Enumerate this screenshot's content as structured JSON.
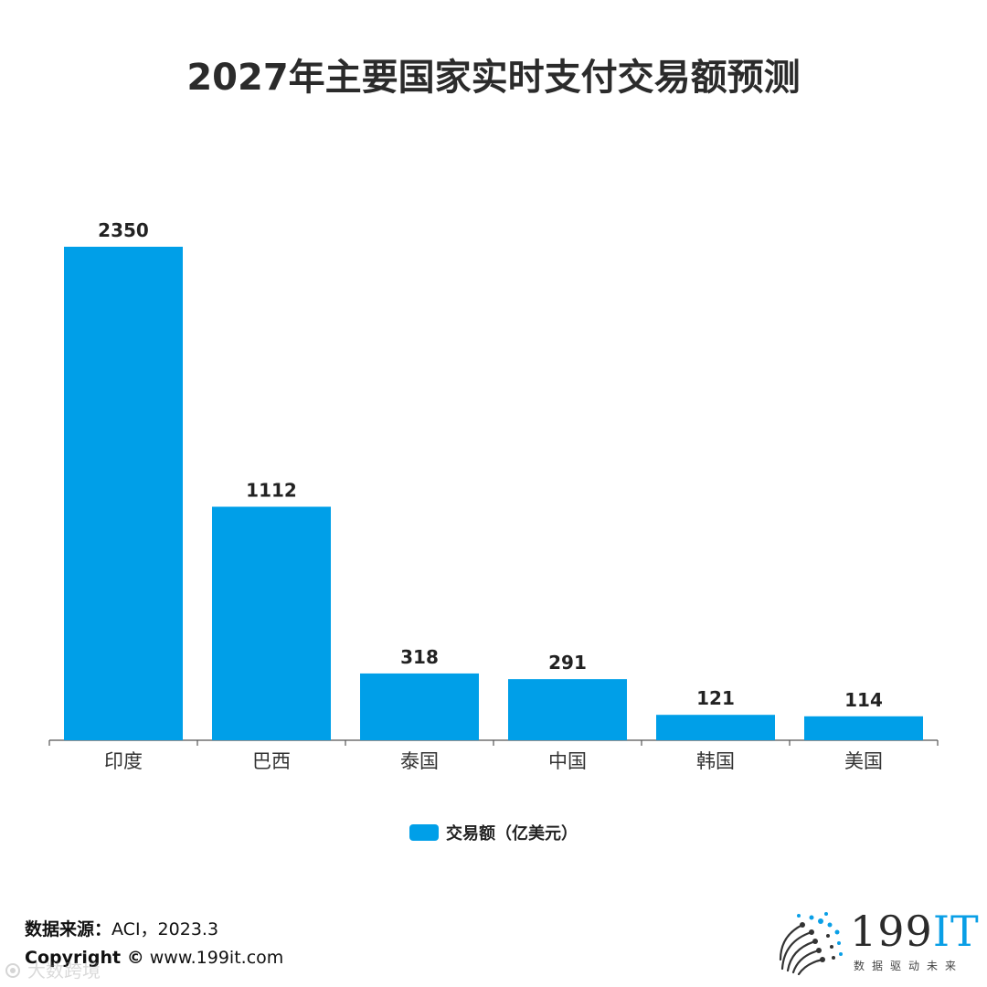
{
  "chart_data": {
    "type": "bar",
    "title": "2027年主要国家实时支付交易额预测",
    "categories": [
      "印度",
      "巴西",
      "泰国",
      "中国",
      "韩国",
      "美国"
    ],
    "series": [
      {
        "name": "交易额（亿美元）",
        "values": [
          2350,
          1112,
          318,
          291,
          121,
          114
        ],
        "color": "#009fe8"
      }
    ],
    "data_labels": [
      "2350",
      "1112",
      "318",
      "291",
      "121",
      "114"
    ],
    "ylim": [
      0,
      2500
    ],
    "grid": false,
    "legend": "bottom-center"
  },
  "footer": {
    "source_label": "数据来源：",
    "source_value": "ACI，2023.3",
    "copyright_label": "Copyright ©",
    "copyright_value": " www.199it.com"
  },
  "watermark": {
    "icon": "camera-icon",
    "text": "大数跨境"
  },
  "logo": {
    "main": "199",
    "accent": "IT",
    "tagline": "数据驱动未来"
  }
}
